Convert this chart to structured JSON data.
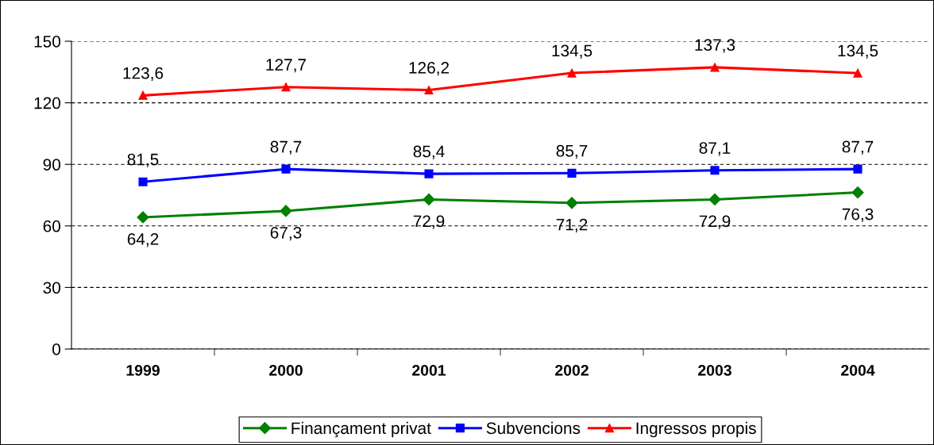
{
  "chart_data": {
    "type": "line",
    "categories": [
      "1999",
      "2000",
      "2001",
      "2002",
      "2003",
      "2004"
    ],
    "series": [
      {
        "name": "Finançament privat",
        "color": "#008000",
        "marker": "diamond",
        "values": [
          64.2,
          67.3,
          72.9,
          71.2,
          72.9,
          76.3
        ],
        "value_labels": [
          "64,2",
          "67,3",
          "72,9",
          "71,2",
          "72,9",
          "76,3"
        ]
      },
      {
        "name": "Subvencions",
        "color": "#0000ff",
        "marker": "square",
        "values": [
          81.5,
          87.7,
          85.4,
          85.7,
          87.1,
          87.7
        ],
        "value_labels": [
          "81,5",
          "87,7",
          "85,4",
          "85,7",
          "87,1",
          "87,7"
        ]
      },
      {
        "name": "Ingressos propis",
        "color": "#ff0000",
        "marker": "triangle",
        "values": [
          123.6,
          127.7,
          126.2,
          134.5,
          137.3,
          134.5
        ],
        "value_labels": [
          "123,6",
          "127,7",
          "126,2",
          "134,5",
          "137,3",
          "134,5"
        ]
      }
    ],
    "ylim": [
      0,
      150
    ],
    "yticks": [
      0,
      30,
      60,
      90,
      120,
      150
    ],
    "grid": "y",
    "legend": "bottom",
    "line_style": "solid"
  }
}
